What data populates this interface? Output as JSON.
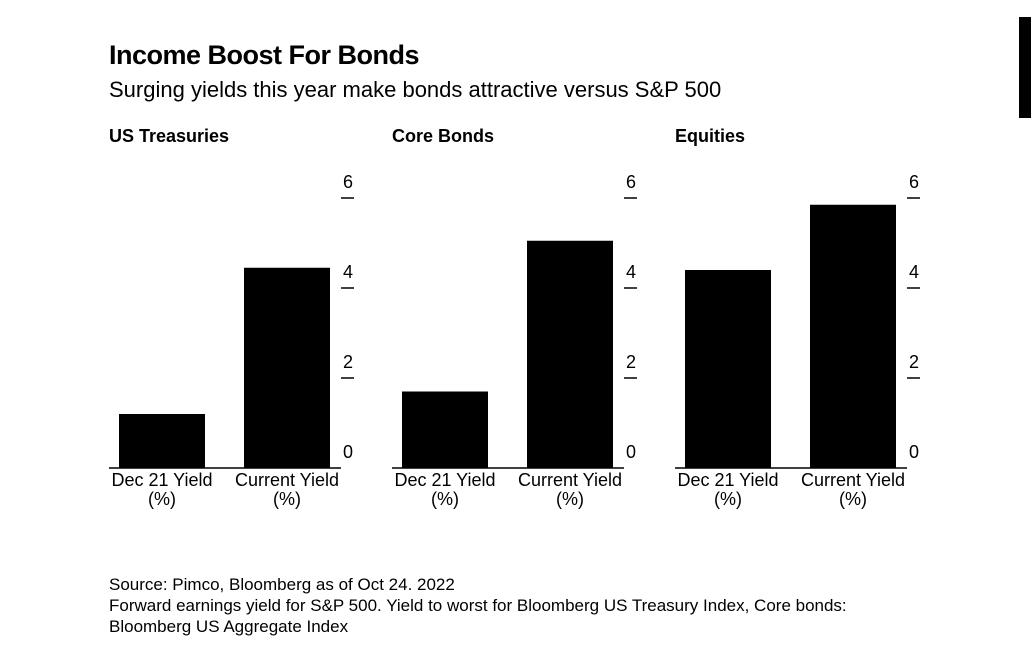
{
  "title": "Income Boost For Bonds",
  "subtitle": "Surging yields this year make bonds attractive versus S&P 500",
  "footer": {
    "source": "Source: Pimco, Bloomberg as of Oct 24. 2022",
    "note_line1": "Forward earnings yield for S&P 500. Yield to worst for Bloomberg US Treasury Index, Core bonds:",
    "note_line2": "Bloomberg US Aggregate Index"
  },
  "colors": {
    "bar": "#000000",
    "background": "#ffffff"
  },
  "chart_data": [
    {
      "type": "bar",
      "title": "US Treasuries",
      "categories": [
        [
          "Dec 21 Yield",
          "(%)"
        ],
        [
          "Current Yield",
          "(%)"
        ]
      ],
      "values": [
        1.2,
        4.45
      ],
      "ylim": [
        0,
        6
      ],
      "yticks": [
        "0",
        "2",
        "4",
        "6"
      ],
      "ytick_values": [
        0,
        2,
        4,
        6
      ],
      "axis_side": "right",
      "grid": false
    },
    {
      "type": "bar",
      "title": "Core Bonds",
      "categories": [
        [
          "Dec 21 Yield",
          "(%)"
        ],
        [
          "Current Yield",
          "(%)"
        ]
      ],
      "values": [
        1.7,
        5.05
      ],
      "ylim": [
        0,
        6
      ],
      "yticks": [
        "0",
        "2",
        "4",
        "6"
      ],
      "ytick_values": [
        0,
        2,
        4,
        6
      ],
      "axis_side": "right",
      "grid": false
    },
    {
      "type": "bar",
      "title": "Equities",
      "categories": [
        [
          "Dec 21 Yield",
          "(%)"
        ],
        [
          "Current Yield",
          "(%)"
        ]
      ],
      "values": [
        4.4,
        5.85
      ],
      "ylim": [
        0,
        6
      ],
      "yticks": [
        "0",
        "2",
        "4",
        "6"
      ],
      "ytick_values": [
        0,
        2,
        4,
        6
      ],
      "axis_side": "right",
      "grid": false
    }
  ]
}
